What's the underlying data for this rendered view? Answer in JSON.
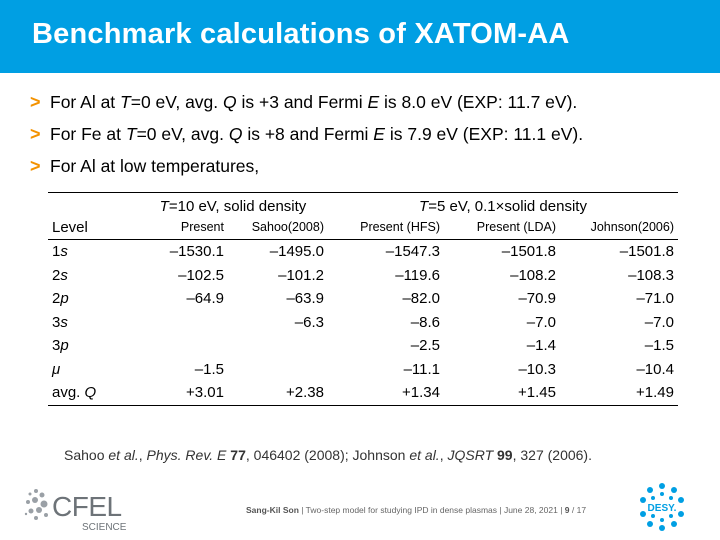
{
  "header": {
    "title": "Benchmark calculations of XATOM-AA"
  },
  "bullets": [
    {
      "pre": "For Al at ",
      "T": "T",
      "mid1": "=0 eV, avg. ",
      "Q": "Q",
      "mid2": " is +3 and Fermi ",
      "E": "E",
      "post": " is 8.0 eV (EXP: 11.7 eV)."
    },
    {
      "pre": "For Fe at ",
      "T": "T",
      "mid1": "=0 eV, avg. ",
      "Q": "Q",
      "mid2": " is +8 and Fermi ",
      "E": "E",
      "post": " is 7.9 eV (EXP: 11.1 eV)."
    },
    {
      "text": "For Al at low temperatures,"
    }
  ],
  "table": {
    "group1": {
      "T": "T",
      "rest": "=10 eV, solid density"
    },
    "group2": {
      "T": "T",
      "rest": "=5 eV, 0.1×solid density"
    },
    "level_header": "Level",
    "sub_headers": [
      "Present",
      "Sahoo(2008)",
      "Present (HFS)",
      "Present (LDA)",
      "Johnson(2006)"
    ],
    "rows": [
      {
        "num": "1",
        "orb": "s",
        "cells": [
          "–1530.1",
          "–1495.0",
          "–1547.3",
          "–1501.8",
          "–1501.8"
        ]
      },
      {
        "num": "2",
        "orb": "s",
        "cells": [
          "–102.5",
          "–101.2",
          "–119.6",
          "–108.2",
          "–108.3"
        ]
      },
      {
        "num": "2",
        "orb": "p",
        "cells": [
          "–64.9",
          "–63.9",
          "–82.0",
          "–70.9",
          "–71.0"
        ]
      },
      {
        "num": "3",
        "orb": "s",
        "cells": [
          "",
          "–6.3",
          "–8.6",
          "–7.0",
          "–7.0"
        ]
      },
      {
        "num": "3",
        "orb": "p",
        "cells": [
          "",
          "",
          "–2.5",
          "–1.4",
          "–1.5"
        ]
      },
      {
        "num": "",
        "orb": "μ",
        "cells": [
          "–1.5",
          "",
          "–11.1",
          "–10.3",
          "–10.4"
        ]
      },
      {
        "num": "avg. ",
        "orb": "Q",
        "cells": [
          "+3.01",
          "+2.38",
          "+1.34",
          "+1.45",
          "+1.49"
        ]
      }
    ]
  },
  "reference": {
    "a1": "Sahoo ",
    "a1i": "et al.",
    "a2": ", ",
    "j1": "Phys. Rev. E",
    "v1": " 77",
    "p1": ", 046402 (2008); Johnson ",
    "a3i": "et al.",
    "a4": ", ",
    "j2": "JQSRT",
    "v2": " 99",
    "p2": ", 327 (2006)."
  },
  "footer": {
    "author": "Sang-Kil Son",
    "sep1": " | ",
    "talk": "Two-step model for studying IPD in dense plasmas",
    "sep2": " | ",
    "date": "June 28, 2021",
    "sep3": " | ",
    "page": "9",
    "total": " / 17"
  },
  "logos": {
    "cfel": "CFEL",
    "cfel_sub": "SCIENCE",
    "desy": "DESY."
  },
  "colors": {
    "header": "#009fe3",
    "accent": "#f39200"
  }
}
